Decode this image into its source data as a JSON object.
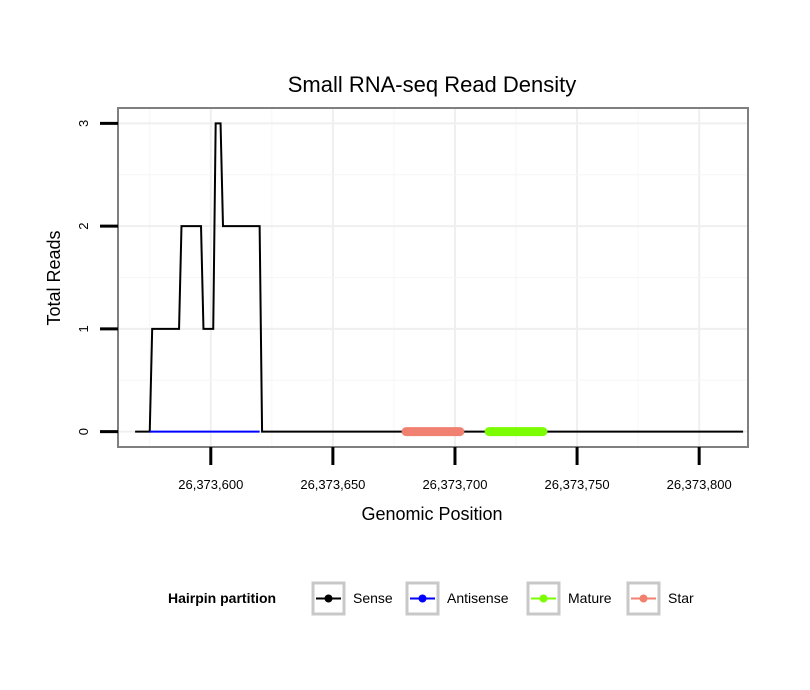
{
  "chart_data": {
    "type": "line",
    "title": "Small RNA-seq Read Density",
    "xlabel": "Genomic Position",
    "ylabel": "Total Reads",
    "xlim": [
      26373562,
      26373820
    ],
    "ylim": [
      -0.15,
      3.15
    ],
    "x_ticks": [
      26373600,
      26373650,
      26373700,
      26373750,
      26373800
    ],
    "x_tick_labels": [
      "26,373,600",
      "26,373,650",
      "26,373,700",
      "26,373,750",
      "26,373,800"
    ],
    "y_ticks": [
      0,
      1,
      2,
      3
    ],
    "y_tick_labels": [
      "0",
      "1",
      "2",
      "3"
    ],
    "grid": true,
    "series": [
      {
        "name": "Sense",
        "color": "#000000",
        "step": true,
        "points": [
          [
            26373569,
            0
          ],
          [
            26373575,
            0
          ],
          [
            26373576,
            1
          ],
          [
            26373587,
            1
          ],
          [
            26373588,
            2
          ],
          [
            26373596,
            2
          ],
          [
            26373597,
            1
          ],
          [
            26373601,
            1
          ],
          [
            26373602,
            3
          ],
          [
            26373604,
            3
          ],
          [
            26373605,
            2
          ],
          [
            26373620,
            2
          ],
          [
            26373621,
            0
          ],
          [
            26373818,
            0
          ]
        ]
      },
      {
        "name": "Antisense",
        "color": "#0000ff",
        "step": false,
        "points": [
          [
            26373575,
            0
          ],
          [
            26373620,
            0
          ]
        ]
      },
      {
        "name": "Mature",
        "color": "#7cfc00",
        "thick": true,
        "points": [
          [
            26373714,
            0
          ],
          [
            26373736,
            0
          ]
        ]
      },
      {
        "name": "Star",
        "color": "#f08070",
        "thick": true,
        "points": [
          [
            26373680,
            0
          ],
          [
            26373702,
            0
          ]
        ]
      }
    ],
    "legend": {
      "title": "Hairpin partition",
      "position": "bottom",
      "entries": [
        {
          "label": "Sense",
          "color": "#000000"
        },
        {
          "label": "Antisense",
          "color": "#0000ff"
        },
        {
          "label": "Mature",
          "color": "#7cfc00"
        },
        {
          "label": "Star",
          "color": "#f08070"
        }
      ]
    }
  }
}
